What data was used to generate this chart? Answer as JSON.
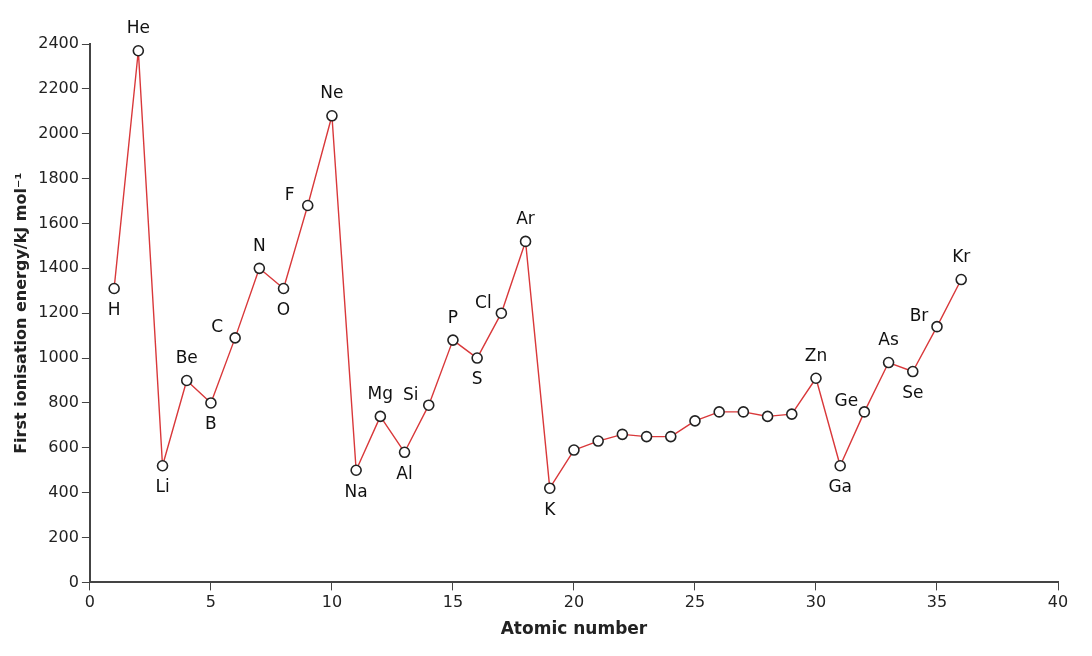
{
  "chart_data": {
    "type": "line",
    "xlabel": "Atomic number",
    "ylabel": "First ionisation energy/kJ mol⁻¹",
    "x": [
      1,
      2,
      3,
      4,
      5,
      6,
      7,
      8,
      9,
      10,
      11,
      12,
      13,
      14,
      15,
      16,
      17,
      18,
      19,
      20,
      21,
      22,
      23,
      24,
      25,
      26,
      27,
      28,
      29,
      30,
      31,
      32,
      33,
      34,
      35,
      36
    ],
    "series": [
      {
        "color": "#d9383a",
        "values": [
          1310,
          2370,
          520,
          900,
          800,
          1090,
          1400,
          1310,
          1680,
          2080,
          500,
          740,
          580,
          790,
          1080,
          1000,
          1200,
          1520,
          420,
          590,
          630,
          660,
          650,
          650,
          720,
          760,
          760,
          740,
          750,
          910,
          520,
          760,
          980,
          940,
          1140,
          1350
        ]
      }
    ],
    "xlim": [
      0,
      40
    ],
    "xticks": [
      0,
      5,
      10,
      15,
      20,
      25,
      30,
      35,
      40
    ],
    "ylim": [
      0,
      2400
    ],
    "yticks": [
      0,
      200,
      400,
      600,
      800,
      1000,
      1200,
      1400,
      1600,
      1800,
      2000,
      2200,
      2400
    ],
    "grid": false,
    "legend": false,
    "marker": "circle",
    "line_style": "solid",
    "annotations": [
      {
        "text": "H",
        "x": 1,
        "y": 1310
      },
      {
        "text": "He",
        "x": 2,
        "y": 2370
      },
      {
        "text": "Li",
        "x": 3,
        "y": 520
      },
      {
        "text": "Be",
        "x": 4,
        "y": 900
      },
      {
        "text": "B",
        "x": 5,
        "y": 800
      },
      {
        "text": "C",
        "x": 6,
        "y": 1090
      },
      {
        "text": "N",
        "x": 7,
        "y": 1400
      },
      {
        "text": "O",
        "x": 8,
        "y": 1310
      },
      {
        "text": "F",
        "x": 9,
        "y": 1680
      },
      {
        "text": "Ne",
        "x": 10,
        "y": 2080
      },
      {
        "text": "Na",
        "x": 11,
        "y": 500
      },
      {
        "text": "Mg",
        "x": 12,
        "y": 740
      },
      {
        "text": "Al",
        "x": 13,
        "y": 580
      },
      {
        "text": "Si",
        "x": 14,
        "y": 790
      },
      {
        "text": "P",
        "x": 15,
        "y": 1080
      },
      {
        "text": "S",
        "x": 16,
        "y": 1000
      },
      {
        "text": "Cl",
        "x": 17,
        "y": 1200
      },
      {
        "text": "Ar",
        "x": 18,
        "y": 1520
      },
      {
        "text": "K",
        "x": 19,
        "y": 420
      },
      {
        "text": "Zn",
        "x": 30,
        "y": 910
      },
      {
        "text": "Ga",
        "x": 31,
        "y": 520
      },
      {
        "text": "Ge",
        "x": 32,
        "y": 760
      },
      {
        "text": "As",
        "x": 33,
        "y": 980
      },
      {
        "text": "Se",
        "x": 34,
        "y": 940
      },
      {
        "text": "Br",
        "x": 35,
        "y": 1140
      },
      {
        "text": "Kr",
        "x": 36,
        "y": 1350
      }
    ]
  }
}
